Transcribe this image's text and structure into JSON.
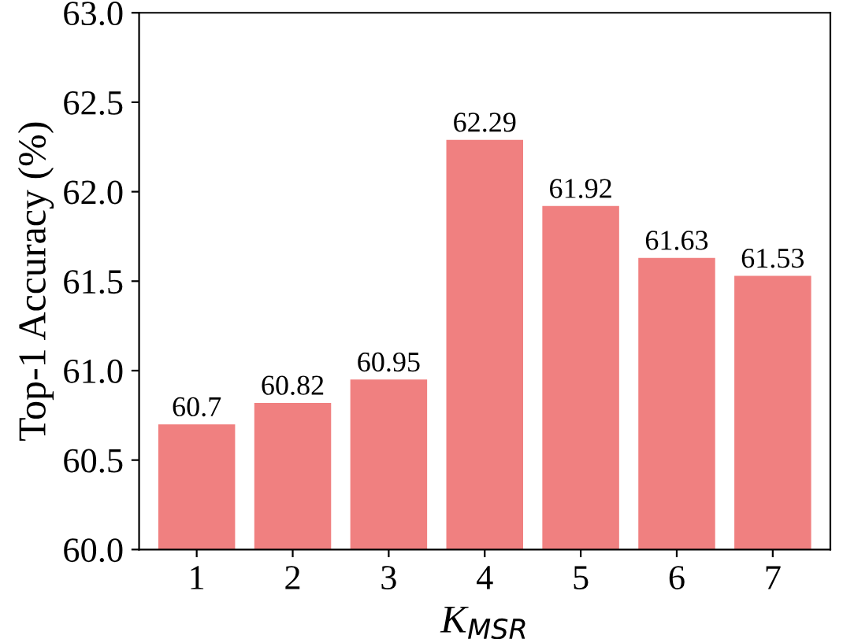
{
  "chart_data": {
    "type": "bar",
    "categories": [
      "1",
      "2",
      "3",
      "4",
      "5",
      "6",
      "7"
    ],
    "values": [
      60.7,
      60.82,
      60.95,
      62.29,
      61.92,
      61.63,
      61.53
    ],
    "color": "#f08080",
    "xlabel": "K$_{MSR}$",
    "ylabel": "Top-1 Accuracy (%)",
    "ylim": [
      60,
      63
    ],
    "yticks": [
      {
        "value": 60,
        "label": "60.0"
      },
      {
        "value": 60.5,
        "label": "60.5"
      },
      {
        "value": 61,
        "label": "61.0"
      },
      {
        "value": 61.5,
        "label": "61.5"
      },
      {
        "value": 62,
        "label": "62.0"
      },
      {
        "value": 62.5,
        "label": "62.5"
      },
      {
        "value": 63,
        "label": "63.0"
      }
    ],
    "data_labels": true,
    "grid": false
  }
}
